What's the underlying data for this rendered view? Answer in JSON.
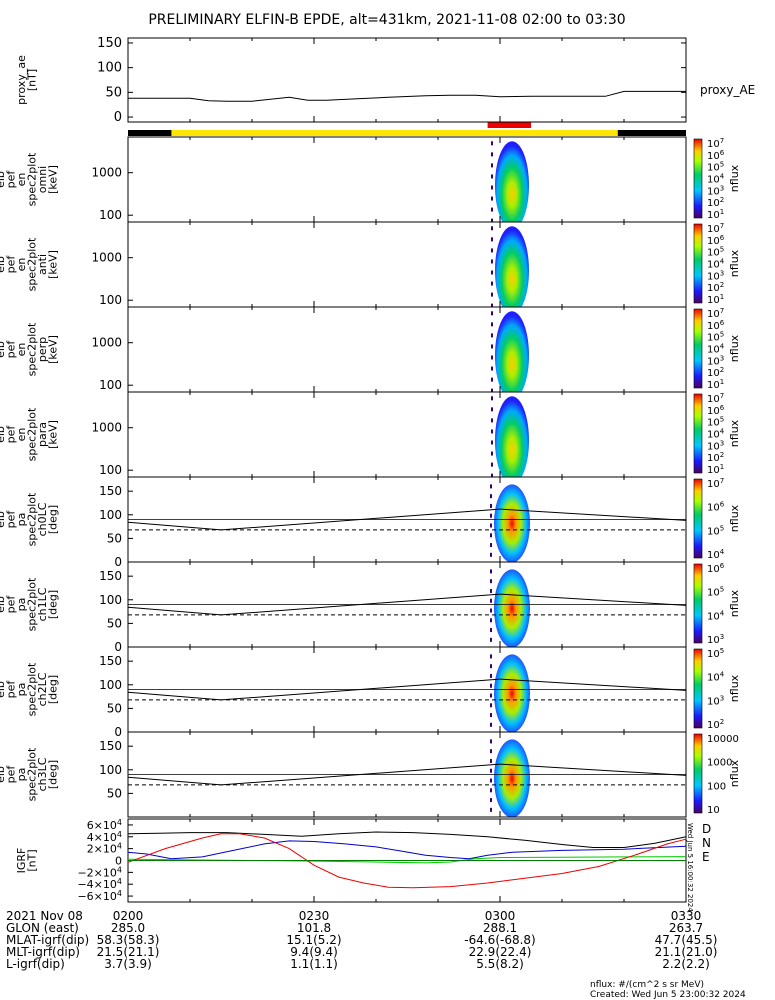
{
  "title": "PRELIMINARY ELFIN-B EPDE, alt=431km, 2021-11-08 02:00 to 03:30",
  "chart_data": {
    "type": "multi-panel stack plot",
    "time_range": [
      "02:00",
      "03:30"
    ],
    "science_zone_bar": {
      "colors": {
        "yellow": "#ffe600",
        "black": "#000000",
        "red": "#ee0000"
      },
      "black_segments": [
        [
          "02:00",
          "02:07"
        ],
        [
          "03:19",
          "03:30"
        ]
      ],
      "yellow_segment": [
        "02:07",
        "03:19"
      ],
      "red_segment": [
        "02:58",
        "03:05"
      ]
    },
    "panels": [
      {
        "id": "proxy_ae",
        "ylabel_lines": [
          "proxy_ae",
          "[nT]"
        ],
        "yticks": [
          "150",
          "100",
          "50",
          "0"
        ],
        "ylim": [
          -10,
          160
        ],
        "legend": "proxy_AE",
        "series": [
          {
            "color": "#000000",
            "x": [
              "02:00",
              "02:05",
              "02:10",
              "02:13",
              "02:16",
              "02:20",
              "02:26",
              "02:29",
              "02:32",
              "02:37",
              "02:42",
              "02:48",
              "02:52",
              "02:56",
              "03:00",
              "03:05",
              "03:12",
              "03:17",
              "03:20",
              "03:25",
              "03:30"
            ],
            "y": [
              38,
              38,
              38,
              33,
              32,
              32,
              40,
              34,
              34,
              37,
              40,
              43,
              44,
              44,
              41,
              42,
              42,
              42,
              52,
              52,
              52
            ]
          }
        ]
      },
      {
        "id": "en_omni",
        "ylabel_lines": [
          "elb",
          "pef",
          "en",
          "spec2plot",
          "omni",
          "[keV]"
        ],
        "yticks": [
          "1000",
          "100"
        ],
        "zlabel": "nflux",
        "zticks": [
          "10",
          "10",
          "10",
          "10",
          "10",
          "10",
          "10"
        ],
        "zexp": [
          "7",
          "6",
          "5",
          "4",
          "3",
          "2",
          "1"
        ]
      },
      {
        "id": "en_anti",
        "ylabel_lines": [
          "elb",
          "pef",
          "en",
          "spec2plot",
          "anti",
          "[keV]"
        ],
        "yticks": [
          "1000",
          "100"
        ],
        "zlabel": "nflux",
        "zticks": [
          "10",
          "10",
          "10",
          "10",
          "10",
          "10",
          "10"
        ],
        "zexp": [
          "7",
          "6",
          "5",
          "4",
          "3",
          "2",
          "1"
        ]
      },
      {
        "id": "en_perp",
        "ylabel_lines": [
          "elb",
          "pef",
          "en",
          "spec2plot",
          "perp",
          "[keV]"
        ],
        "yticks": [
          "1000",
          "100"
        ],
        "zlabel": "nflux",
        "zticks": [
          "10",
          "10",
          "10",
          "10",
          "10",
          "10",
          "10"
        ],
        "zexp": [
          "7",
          "6",
          "5",
          "4",
          "3",
          "2",
          "1"
        ]
      },
      {
        "id": "en_para",
        "ylabel_lines": [
          "elb",
          "pef",
          "en",
          "spec2plot",
          "para",
          "[keV]"
        ],
        "yticks": [
          "1000",
          "100"
        ],
        "zlabel": "nflux",
        "zticks": [
          "10",
          "10",
          "10",
          "10",
          "10",
          "10",
          "10"
        ],
        "zexp": [
          "7",
          "6",
          "5",
          "4",
          "3",
          "2",
          "1"
        ]
      },
      {
        "id": "pa_ch0",
        "ylabel_lines": [
          "elb",
          "pef",
          "pa",
          "spec2plot",
          "ch0LC",
          "[deg]"
        ],
        "yticks": [
          "150",
          "100",
          "50",
          "0"
        ],
        "zlabel": "nflux",
        "zticks": [
          "10",
          "10",
          "10",
          "10"
        ],
        "zexp": [
          "7",
          "6",
          "5",
          "4"
        ]
      },
      {
        "id": "pa_ch1",
        "ylabel_lines": [
          "elb",
          "pef",
          "pa",
          "spec2plot",
          "ch1LC",
          "[deg]"
        ],
        "yticks": [
          "150",
          "100",
          "50",
          "0"
        ],
        "zlabel": "nflux",
        "zticks": [
          "10",
          "10",
          "10",
          "10"
        ],
        "zexp": [
          "6",
          "5",
          "4",
          "3"
        ]
      },
      {
        "id": "pa_ch2",
        "ylabel_lines": [
          "elb",
          "pef",
          "pa",
          "spec2plot",
          "ch2LC",
          "[deg]"
        ],
        "yticks": [
          "150",
          "100",
          "50",
          "0"
        ],
        "zlabel": "nflux",
        "zticks": [
          "10",
          "10",
          "10",
          "10"
        ],
        "zexp": [
          "5",
          "4",
          "3",
          "2"
        ]
      },
      {
        "id": "pa_ch3",
        "ylabel_lines": [
          "elb",
          "pef",
          "pa",
          "spec2plot",
          "ch3LC",
          "[deg]"
        ],
        "yticks": [
          "150",
          "100",
          "50"
        ],
        "zlabel": "nflux",
        "zticks": [
          "10000",
          "1000",
          "100",
          "10"
        ],
        "zexp": []
      },
      {
        "id": "igrf",
        "ylabel_lines": [
          "IGRF",
          "[nT]"
        ],
        "yticks": [
          {
            "m": "6",
            "e": "4"
          },
          {
            "m": "4",
            "e": "4"
          },
          {
            "m": "2",
            "e": "4"
          },
          {
            "m": "0",
            "e": ""
          },
          {
            "m": "−2",
            "e": "4"
          },
          {
            "m": "−4",
            "e": "4"
          },
          {
            "m": "−6",
            "e": "4"
          }
        ],
        "legend": [
          {
            "name": "D",
            "color": "#ee0000"
          },
          {
            "name": "N",
            "color": "#0000cc"
          },
          {
            "name": "E",
            "color": "#00cc00"
          }
        ],
        "series": [
          {
            "color": "#000000",
            "x": [
              "02:00",
              "02:05",
              "02:10",
              "02:16",
              "02:22",
              "02:28",
              "02:34",
              "02:40",
              "02:46",
              "02:52",
              "02:58",
              "03:04",
              "03:10",
              "03:15",
              "03:20",
              "03:25",
              "03:30"
            ],
            "y": [
              45000,
              46000,
              47000,
              47000,
              44000,
              41000,
              45000,
              48000,
              47000,
              44000,
              40000,
              34000,
              27000,
              22000,
              22000,
              29000,
              40000
            ]
          },
          {
            "color": "#0000cc",
            "x": [
              "02:00",
              "02:03",
              "02:07",
              "02:12",
              "02:17",
              "02:22",
              "02:26",
              "02:30",
              "02:35",
              "02:40",
              "02:44",
              "02:48",
              "02:52",
              "02:55",
              "02:58",
              "03:02",
              "03:10",
              "03:20",
              "03:30"
            ],
            "y": [
              14000,
              11000,
              3000,
              6000,
              17000,
              28000,
              33000,
              32000,
              28000,
              23000,
              16000,
              9000,
              5000,
              3000,
              9000,
              14000,
              17000,
              19000,
              24000
            ]
          },
          {
            "color": "#00cc00",
            "x": [
              "02:00",
              "02:10",
              "02:20",
              "02:30",
              "02:40",
              "02:48",
              "02:52",
              "02:56",
              "03:00",
              "03:10",
              "03:20",
              "03:30"
            ],
            "y": [
              2000,
              1000,
              0,
              -1000,
              -2500,
              -4000,
              -2500,
              3000,
              5000,
              5500,
              6000,
              6500
            ]
          },
          {
            "color": "#ee0000",
            "x": [
              "02:00",
              "02:06",
              "02:12",
              "02:15",
              "02:18",
              "02:22",
              "02:26",
              "02:30",
              "02:34",
              "02:38",
              "02:42",
              "02:46",
              "02:52",
              "02:58",
              "03:04",
              "03:10",
              "03:16",
              "03:22",
              "03:27",
              "03:30"
            ],
            "y": [
              -3000,
              20000,
              38000,
              45000,
              45000,
              38000,
              20000,
              -8000,
              -28000,
              -38000,
              -45000,
              -46000,
              -44000,
              -38000,
              -30000,
              -22000,
              -10000,
              10000,
              28000,
              36000
            ]
          },
          {
            "color": "#008000",
            "x": [
              "02:00",
              "03:30"
            ],
            "y": [
              0,
              0
            ]
          }
        ]
      }
    ],
    "pa_reference_lines": {
      "solid": [
        [
          "02:00",
          84
        ],
        [
          "02:15",
          68
        ],
        [
          "03:00",
          112
        ],
        [
          "03:30",
          88
        ]
      ],
      "dashed": [
        [
          "02:00",
          68
        ],
        [
          "03:30",
          68
        ]
      ]
    },
    "xaxis_labels": {
      "row_names": [
        "2021 Nov 08",
        "GLON (east)",
        "MLAT-igrf(dip)",
        "MLT-igrf(dip)",
        "L-igrf(dip)"
      ],
      "columns": [
        {
          "time": "02:00",
          "tick": "0200",
          "values": [
            "285.0",
            "58.3(58.3)",
            "21.5(21.1)",
            "3.7(3.9)"
          ]
        },
        {
          "time": "02:30",
          "tick": "0230",
          "values": [
            "101.8",
            "15.1(5.2)",
            "9.4(9.4)",
            "1.1(1.1)"
          ]
        },
        {
          "time": "03:00",
          "tick": "0300",
          "values": [
            "288.1",
            "-64.6(-68.8)",
            "22.9(22.4)",
            "5.5(8.2)"
          ]
        },
        {
          "time": "03:30",
          "tick": "0330",
          "values": [
            "263.7",
            "47.7(45.5)",
            "21.1(21.0)",
            "2.2(2.2)"
          ]
        }
      ]
    },
    "footer": [
      "nflux: #/(cm^2 s sr MeV)",
      "Created: Wed Jun  5 23:00:32 2024"
    ],
    "vertical_stamp": "Wed Jun  5 16:00:32 2024"
  }
}
